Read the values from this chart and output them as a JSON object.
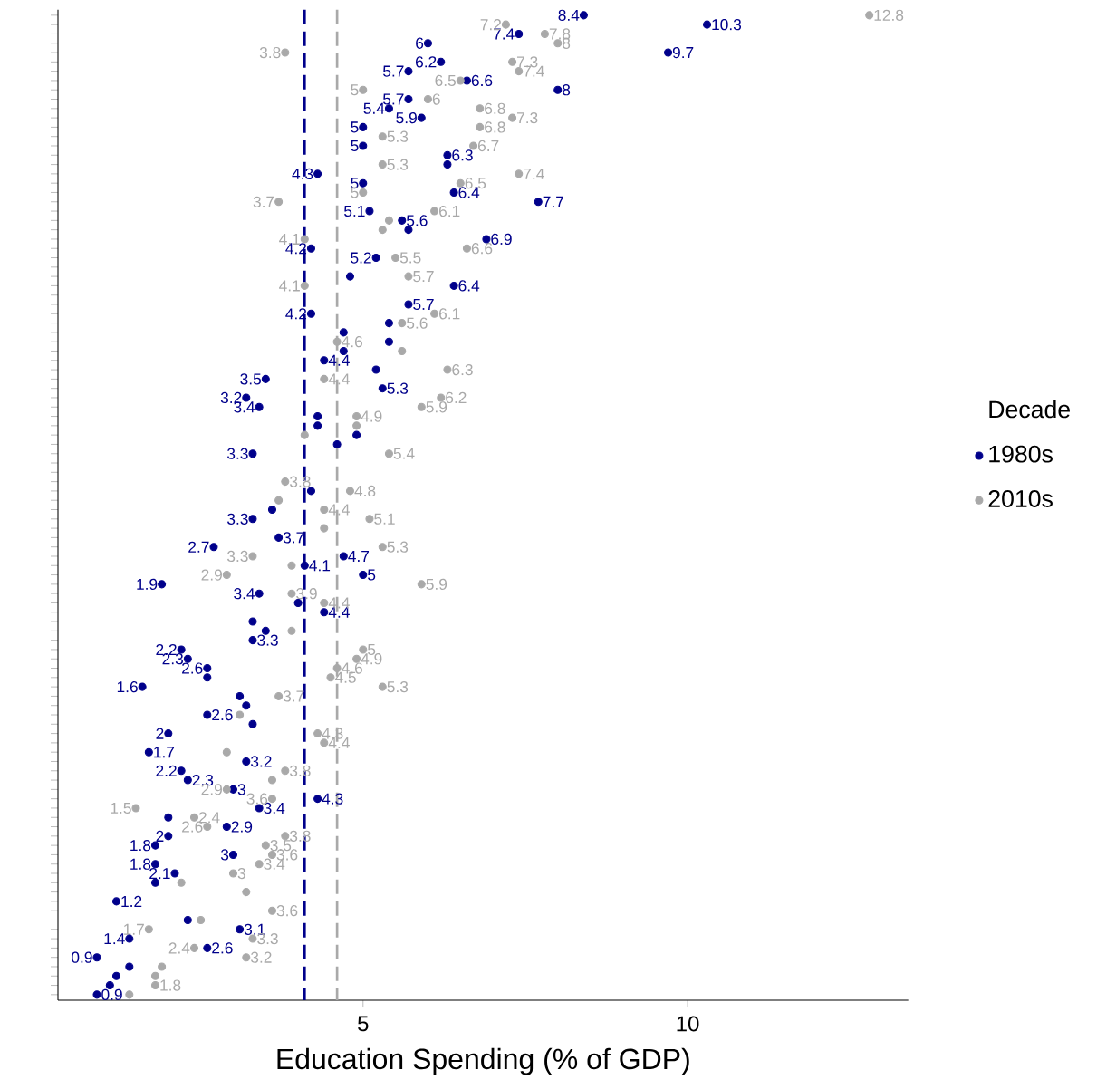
{
  "chart_data": {
    "type": "scatter",
    "orientation": "horizontal",
    "legend": "right",
    "legend_title": "Decade",
    "xlabel": "Education Spending (% of GDP)",
    "xlim": [
      0.3,
      13.4
    ],
    "xticks": [
      5,
      10
    ],
    "categories": [
      null,
      null,
      null,
      null,
      null,
      null,
      null,
      null,
      null,
      null,
      null,
      null,
      null,
      null,
      null,
      null,
      null,
      null,
      null,
      null,
      null,
      null,
      null,
      null,
      null,
      null,
      null,
      null,
      null,
      null,
      null,
      null,
      null,
      null,
      null,
      null,
      null,
      null,
      null,
      null,
      null,
      null,
      null,
      null,
      null,
      null,
      null,
      null,
      null,
      null,
      null,
      null,
      null,
      null,
      null,
      null,
      null,
      null,
      null,
      null,
      null,
      null,
      null,
      null,
      null,
      null,
      null,
      null,
      null,
      null,
      null,
      null,
      null,
      null,
      null,
      null,
      null,
      null,
      null,
      null,
      null,
      null,
      null,
      null,
      null,
      null,
      null,
      null,
      null,
      null,
      null,
      null,
      null,
      null,
      null,
      null,
      null,
      null,
      null,
      null,
      null,
      null,
      null,
      null,
      null,
      null
    ],
    "series": [
      {
        "name": "1980s",
        "color": "#00008b",
        "values": [
          8.4,
          10.3,
          7.4,
          6,
          9.7,
          6.2,
          5.7,
          6.6,
          8,
          5.7,
          5.4,
          5.9,
          5,
          null,
          5,
          6.3,
          6.3,
          4.3,
          5,
          6.4,
          7.7,
          5.1,
          5.6,
          5.7,
          6.9,
          4.2,
          5.2,
          null,
          4.8,
          6.4,
          null,
          5.7,
          4.2,
          5.4,
          4.7,
          5.4,
          4.7,
          4.4,
          5.2,
          3.5,
          5.3,
          3.2,
          3.4,
          4.3,
          4.3,
          4.9,
          4.6,
          3.3,
          null,
          null,
          null,
          4.2,
          null,
          3.6,
          3.3,
          null,
          3.7,
          2.7,
          4.7,
          4.1,
          5,
          1.9,
          3.4,
          4,
          4.4,
          3.3,
          3.5,
          3.3,
          2.2,
          2.3,
          2.6,
          2.6,
          1.6,
          3.1,
          3.2,
          2.6,
          3.3,
          2,
          null,
          1.7,
          3.2,
          2.2,
          2.3,
          3,
          4.3,
          3.4,
          2,
          2.9,
          2,
          1.8,
          3,
          1.8,
          2.1,
          1.8,
          null,
          1.2,
          null,
          2.3,
          3.1,
          1.4,
          2.6,
          0.9,
          1.4,
          1.2,
          1.1,
          0.9
        ],
        "value_labels": [
          "8.4",
          "10.3",
          "7.4",
          "6",
          "9.7",
          "6.2",
          "5.7",
          "6.6",
          "8",
          "5.7",
          "5.4",
          "5.9",
          "5",
          null,
          "5",
          "6.3",
          null,
          "4.3",
          "5",
          "6.4",
          "7.7",
          "5.1",
          "5.6",
          null,
          "6.9",
          "4.2",
          "5.2",
          null,
          null,
          "6.4",
          null,
          "5.7",
          "4.2",
          null,
          null,
          null,
          null,
          "4.4",
          null,
          "3.5",
          "5.3",
          "3.2",
          "3.4",
          null,
          null,
          null,
          null,
          "3.3",
          null,
          null,
          null,
          null,
          null,
          null,
          "3.3",
          null,
          "3.7",
          "2.7",
          "4.7",
          "4.1",
          "5",
          "1.9",
          "3.4",
          null,
          "4.4",
          null,
          null,
          "3.3",
          "2.2",
          "2.3",
          "2.6",
          null,
          "1.6",
          null,
          null,
          "2.6",
          null,
          "2",
          null,
          "1.7",
          "3.2",
          "2.2",
          "2.3",
          "3",
          "4.3",
          "3.4",
          null,
          "2.9",
          "2",
          "1.8",
          "3",
          "1.8",
          "2.1",
          null,
          null,
          "1.2",
          null,
          null,
          "3.1",
          "1.4",
          "2.6",
          "0.9",
          null,
          null,
          null,
          "0.9"
        ]
      },
      {
        "name": "2010s",
        "color": "#a9a9a9",
        "values": [
          12.8,
          7.2,
          7.8,
          8,
          3.8,
          7.3,
          7.4,
          6.5,
          5,
          6,
          6.8,
          7.3,
          6.8,
          5.3,
          6.7,
          null,
          5.3,
          7.4,
          6.5,
          5,
          3.7,
          6.1,
          5.4,
          5.3,
          4.1,
          6.6,
          5.5,
          null,
          5.7,
          4.1,
          null,
          null,
          6.1,
          5.6,
          null,
          4.6,
          5.6,
          null,
          6.3,
          4.4,
          null,
          6.2,
          5.9,
          4.9,
          4.9,
          4.1,
          null,
          5.4,
          null,
          null,
          3.8,
          4.8,
          3.7,
          4.4,
          5.1,
          4.4,
          null,
          5.3,
          3.3,
          3.9,
          2.9,
          5.9,
          3.9,
          4.4,
          null,
          null,
          3.9,
          null,
          5,
          4.9,
          4.6,
          4.5,
          5.3,
          3.7,
          null,
          3.1,
          null,
          4.3,
          4.4,
          2.9,
          null,
          3.8,
          3.6,
          2.9,
          3.6,
          1.5,
          2.4,
          2.6,
          3.8,
          3.5,
          3.6,
          3.4,
          3,
          2.2,
          3.2,
          null,
          3.6,
          2.5,
          1.7,
          3.3,
          2.4,
          3.2,
          1.9,
          1.8,
          1.8,
          1.4
        ],
        "value_labels": [
          "12.8",
          "7.2",
          "7.8",
          "8",
          "3.8",
          "7.3",
          "7.4",
          "6.5",
          "5",
          "6",
          "6.8",
          "7.3",
          "6.8",
          "5.3",
          "6.7",
          null,
          "5.3",
          "7.4",
          "6.5",
          "5",
          "3.7",
          "6.1",
          null,
          null,
          "4.1",
          "6.6",
          "5.5",
          null,
          "5.7",
          "4.1",
          null,
          null,
          "6.1",
          "5.6",
          null,
          "4.6",
          null,
          null,
          "6.3",
          "4.4",
          null,
          "6.2",
          "5.9",
          "4.9",
          null,
          null,
          null,
          "5.4",
          null,
          null,
          "3.8",
          "4.8",
          null,
          "4.4",
          "5.1",
          null,
          null,
          "5.3",
          "3.3",
          null,
          "2.9",
          "5.9",
          "3.9",
          "4.4",
          null,
          null,
          null,
          null,
          "5",
          "4.9",
          "4.6",
          "4.5",
          "5.3",
          "3.7",
          null,
          null,
          null,
          "4.3",
          "4.4",
          null,
          null,
          "3.8",
          null,
          "2.9",
          "3.6",
          "1.5",
          "2.4",
          "2.6",
          "3.8",
          "3.5",
          "3.6",
          "3.4",
          "3",
          null,
          null,
          null,
          "3.6",
          null,
          "1.7",
          "3.3",
          "2.4",
          "3.2",
          null,
          null,
          "1.8",
          null
        ]
      }
    ],
    "ref_lines": [
      {
        "axis": "x",
        "value": 4.1,
        "color": "#00008b",
        "line_style": "dashed"
      },
      {
        "axis": "x",
        "value": 4.6,
        "color": "#a9a9a9",
        "line_style": "dashed"
      }
    ]
  }
}
